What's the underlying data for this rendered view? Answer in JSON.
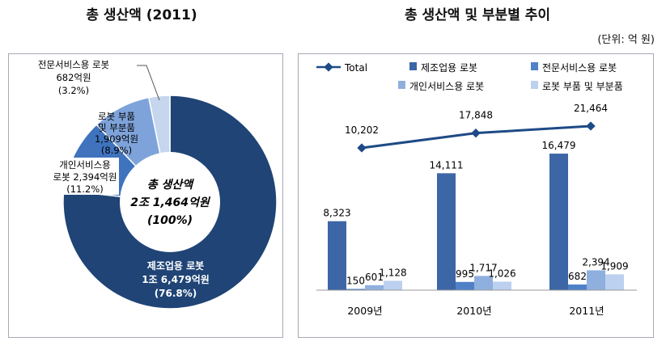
{
  "left": {
    "title": "총 생산액 (2011)",
    "center": {
      "line1": "총 생산액",
      "line2": "2조 1,464억원",
      "line3": "(100%)"
    },
    "chart_data": {
      "type": "pie",
      "title": "총 생산액 (2011)",
      "slices": [
        {
          "label": "제조업용 로봇",
          "value": 16479,
          "value_label": "1조 6,479억원",
          "percent": "(76.8%)",
          "color": "#1f4475"
        },
        {
          "label": "개인서비스용 로봇",
          "value": 2394,
          "value_label": "2,394억원",
          "percent": "(11.2%)",
          "color": "#3f73bd"
        },
        {
          "label": "로봇 부품 및 부분품",
          "value": 1909,
          "value_label": "1,909억원",
          "percent": "(8.9%)",
          "color": "#7ea3da"
        },
        {
          "label": "전문서비스용 로봇",
          "value": 682,
          "value_label": "682억원",
          "percent": "(3.2%)",
          "color": "#c5d6ee"
        }
      ]
    },
    "labels": {
      "manufacturing": {
        "l1": "제조업용 로봇",
        "l2": "1조 6,479억원",
        "l3": "(76.8%)"
      },
      "personal": {
        "l1": "개인서비스용",
        "l2": "로봇 2,394억원",
        "l3": "(11.2%)"
      },
      "parts": {
        "l1": "로봇 부품",
        "l2": "및 부분품",
        "l3": "1,909억원",
        "l4": "(8.9%)"
      },
      "professional": {
        "l1": "전문서비스용 로봇",
        "l2": "682억원",
        "l3": "(3.2%)"
      }
    }
  },
  "right": {
    "title": "총 생산액 및 부분별 추이",
    "unit": "(단위: 억 원)",
    "chart_data": {
      "type": "bar",
      "categories": [
        "2009년",
        "2010년",
        "2011년"
      ],
      "ylim": [
        0,
        24000
      ],
      "series": [
        {
          "name": "제조업용 로봇",
          "values": [
            8323,
            14111,
            16479
          ],
          "labels": [
            "8,323",
            "14,111",
            "16,479"
          ],
          "color": "#3c66a6"
        },
        {
          "name": "전문서비스용 로봇",
          "values": [
            150,
            995,
            682
          ],
          "labels": [
            "150",
            "995",
            "682"
          ],
          "color": "#4f81c7"
        },
        {
          "name": "개인서비스용 로봇",
          "values": [
            601,
            1717,
            2394
          ],
          "labels": [
            "601",
            "1,717",
            "2,394"
          ],
          "color": "#8fb0de"
        },
        {
          "name": "로봇 부품 및 부분품",
          "values": [
            1128,
            1026,
            1909
          ],
          "labels": [
            "1,128",
            "1,026",
            "1,909"
          ],
          "color": "#bcd0ef"
        }
      ],
      "line": {
        "name": "Total",
        "values": [
          10202,
          17848,
          21464
        ],
        "labels": [
          "10,202",
          "17,848",
          "21,464"
        ],
        "color": "#1e4a86"
      },
      "legend": "top"
    }
  }
}
